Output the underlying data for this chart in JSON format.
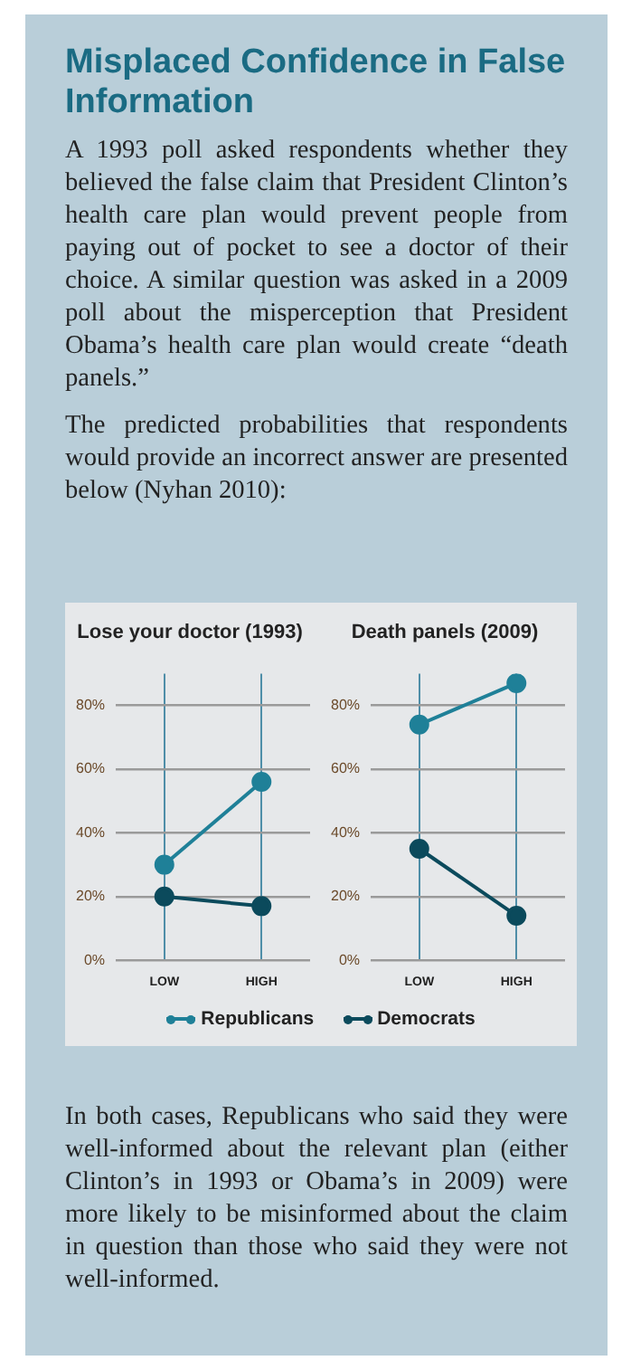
{
  "chart_data": [
    {
      "type": "other",
      "title": "Misplaced Confidence in False Information",
      "annotations": [
        "A 1993 poll asked respondents whether they believed the false claim that President Clinton’s health care plan would prevent people from paying out of pocket to see a doctor of their choice. A similar question was asked in a 2009 poll about the misperception that President Obama’s health care plan would create “death panels.”",
        "The predicted probabilities that respondents would provide an incorrect answer are presented below (Nyhan 2010):"
      ]
    },
    {
      "type": "line",
      "title": "Lose your doctor (1993)",
      "categories": [
        "LOW",
        "HIGH"
      ],
      "series": [
        {
          "color": "#1f8098",
          "values": [
            30,
            56
          ]
        },
        {
          "color": "#0b4a5c",
          "values": [
            20,
            17
          ]
        }
      ],
      "ylim": [
        0,
        90
      ],
      "yticks": [
        {
          "value": 0,
          "label": "0%"
        },
        {
          "value": 20,
          "label": "20%"
        },
        {
          "value": 40,
          "label": "40%"
        },
        {
          "value": 60,
          "label": "60%"
        },
        {
          "value": 80,
          "label": "80%"
        }
      ],
      "grid": true,
      "marker": "circle",
      "line_style": "solid"
    },
    {
      "type": "line",
      "title": "Death panels (2009)",
      "categories": [
        "LOW",
        "HIGH"
      ],
      "series": [
        {
          "name": "Republicans",
          "color": "#1f8098",
          "values": [
            74,
            87
          ]
        },
        {
          "name": "Democrats",
          "color": "#0b4a5c",
          "values": [
            35,
            14
          ]
        }
      ],
      "ylim": [
        0,
        90
      ],
      "yticks": [
        {
          "value": 0,
          "label": "0%"
        },
        {
          "value": 20,
          "label": "20%"
        },
        {
          "value": 40,
          "label": "40%"
        },
        {
          "value": 60,
          "label": "60%"
        },
        {
          "value": 80,
          "label": "80%"
        }
      ],
      "grid": true,
      "marker": "circle",
      "line_style": "solid",
      "legend": "bottom"
    },
    {
      "type": "other",
      "annotations": [
        "In both cases, Republicans who said they were well-informed about the relevant plan (either Clinton’s in 1993 or Obama’s in 2009) were more likely to be misinformed about the claim in question than those who said they were not well-informed."
      ]
    }
  ]
}
